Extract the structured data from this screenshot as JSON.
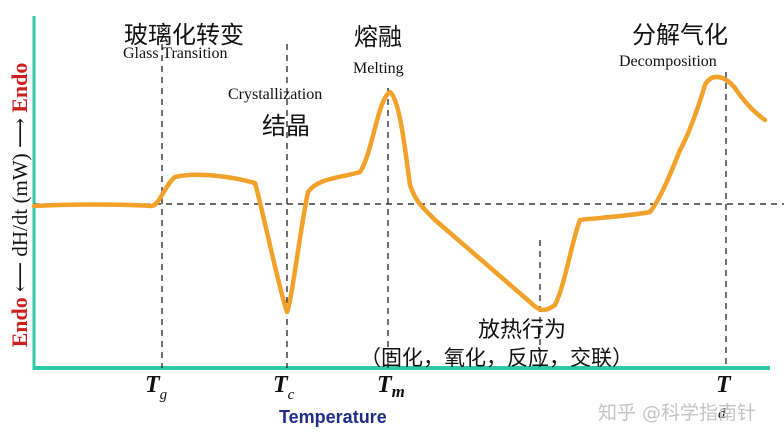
{
  "diagram": {
    "axis_color": "#2ec9a8",
    "curve_color": "#f2a12a",
    "y_axis_label": {
      "endo_top": "Endo",
      "arrow_up": "⟶",
      "middle": "dH/dt (mW)",
      "arrow_down": "⟵",
      "endo_bottom": "Endo"
    },
    "x_axis_label": "Temperature",
    "events": [
      {
        "key": "glass",
        "title_cn": "玻璃化转变",
        "title_en": "Glass Transition"
      },
      {
        "key": "cryst",
        "title_en": "Crystallization",
        "title_cn": "结晶"
      },
      {
        "key": "melt",
        "title_cn": "熔融",
        "title_en": "Melting"
      },
      {
        "key": "decomp",
        "title_cn": "分解气化",
        "title_en": "Decomposition"
      }
    ],
    "exotherm": {
      "title_cn": "放热行为",
      "detail_cn": "（固化，氧化，反应，交联）"
    },
    "ticks": [
      {
        "main": "T",
        "sub": "g"
      },
      {
        "main": "T",
        "sub": "c"
      },
      {
        "main": "T",
        "sub": "m"
      },
      {
        "main": "T",
        "sub": "d"
      }
    ],
    "watermark": "知乎 @科学指南针"
  }
}
